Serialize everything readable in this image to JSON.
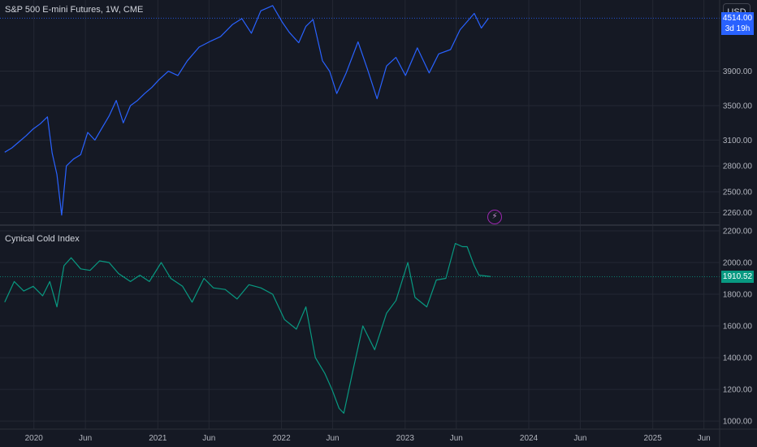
{
  "header": {
    "main_title": "S&P 500 E-mini Futures, 1W, CME",
    "currency_label": "USD",
    "indicator_title": "Cynical Cold Index"
  },
  "badges": {
    "price_value": "4514.00",
    "price_countdown": "3d 19h",
    "indicator_value": "1910.52"
  },
  "colors": {
    "background": "#151924",
    "grid": "#242833",
    "price_line": "#2962ff",
    "indicator_line": "#089981",
    "axis_text": "#b2b5be",
    "lightning_marker": "#9c27b0"
  },
  "icons": {
    "event_marker": "lightning-icon"
  },
  "chart_data": [
    {
      "type": "line",
      "title": "S&P 500 E-mini Futures, 1W, CME",
      "yticks": [
        "2260.00",
        "2500.00",
        "2800.00",
        "3100.00",
        "3500.00",
        "3900.00"
      ],
      "ylim": [
        2180,
        4650
      ],
      "last_value": 4514.0,
      "series": [
        {
          "name": "",
          "x": [
            "2019-10-07",
            "2019-10-28",
            "2019-11-18",
            "2019-12-09",
            "2019-12-30",
            "2020-01-20",
            "2020-02-10",
            "2020-02-24",
            "2020-03-09",
            "2020-03-23",
            "2020-04-06",
            "2020-04-27",
            "2020-05-18",
            "2020-06-08",
            "2020-06-29",
            "2020-07-20",
            "2020-08-10",
            "2020-08-31",
            "2020-09-21",
            "2020-10-12",
            "2020-11-02",
            "2020-11-23",
            "2020-12-14",
            "2021-01-04",
            "2021-02-01",
            "2021-03-01",
            "2021-03-29",
            "2021-05-03",
            "2021-06-07",
            "2021-07-05",
            "2021-08-09",
            "2021-09-06",
            "2021-10-04",
            "2021-11-01",
            "2021-12-06",
            "2022-01-03",
            "2022-01-24",
            "2022-02-21",
            "2022-03-14",
            "2022-04-04",
            "2022-05-02",
            "2022-05-23",
            "2022-06-13",
            "2022-07-11",
            "2022-08-15",
            "2022-09-12",
            "2022-10-10",
            "2022-11-07",
            "2022-12-05",
            "2023-01-02",
            "2023-02-06",
            "2023-03-13",
            "2023-04-10",
            "2023-05-15",
            "2023-06-12",
            "2023-07-24",
            "2023-08-14",
            "2023-09-04"
          ],
          "values": [
            2960,
            3010,
            3080,
            3150,
            3230,
            3290,
            3370,
            2950,
            2700,
            2230,
            2800,
            2880,
            2930,
            3190,
            3100,
            3240,
            3380,
            3560,
            3300,
            3500,
            3560,
            3640,
            3710,
            3800,
            3900,
            3850,
            4020,
            4180,
            4250,
            4300,
            4440,
            4510,
            4340,
            4600,
            4660,
            4470,
            4350,
            4230,
            4420,
            4500,
            4020,
            3900,
            3640,
            3880,
            4240,
            3920,
            3580,
            3960,
            4060,
            3850,
            4170,
            3880,
            4100,
            4150,
            4380,
            4570,
            4400,
            4514
          ]
        }
      ]
    },
    {
      "type": "line",
      "title": "Cynical Cold Index",
      "yticks": [
        "1000.00",
        "1200.00",
        "1400.00",
        "1600.00",
        "1800.00",
        "2000.00",
        "2200.00"
      ],
      "ylim": [
        970,
        2210
      ],
      "last_value": 1910.52,
      "series": [
        {
          "name": "",
          "x": [
            "2019-10-07",
            "2019-11-04",
            "2019-12-02",
            "2019-12-30",
            "2020-01-27",
            "2020-02-17",
            "2020-03-09",
            "2020-03-30",
            "2020-04-20",
            "2020-05-18",
            "2020-06-15",
            "2020-07-13",
            "2020-08-10",
            "2020-09-07",
            "2020-10-12",
            "2020-11-09",
            "2020-12-07",
            "2021-01-11",
            "2021-02-08",
            "2021-03-15",
            "2021-04-12",
            "2021-05-17",
            "2021-06-14",
            "2021-07-19",
            "2021-08-23",
            "2021-09-27",
            "2021-11-01",
            "2021-12-06",
            "2022-01-10",
            "2022-02-14",
            "2022-03-14",
            "2022-04-11",
            "2022-05-09",
            "2022-05-30",
            "2022-06-20",
            "2022-07-04",
            "2022-08-01",
            "2022-08-29",
            "2022-10-03",
            "2022-11-07",
            "2022-12-05",
            "2023-01-09",
            "2023-01-30",
            "2023-03-06",
            "2023-04-03",
            "2023-05-01",
            "2023-05-29",
            "2023-06-19",
            "2023-07-03",
            "2023-07-24",
            "2023-08-07",
            "2023-08-28",
            "2023-09-11"
          ],
          "values": [
            1750,
            1880,
            1820,
            1850,
            1790,
            1880,
            1720,
            1980,
            2030,
            1960,
            1950,
            2010,
            2000,
            1930,
            1880,
            1920,
            1880,
            2000,
            1900,
            1850,
            1750,
            1900,
            1840,
            1830,
            1770,
            1860,
            1840,
            1800,
            1640,
            1580,
            1720,
            1400,
            1300,
            1200,
            1080,
            1050,
            1330,
            1600,
            1450,
            1680,
            1760,
            2000,
            1780,
            1720,
            1890,
            1900,
            2120,
            2100,
            2100,
            1980,
            1920,
            1915,
            1910.52
          ]
        }
      ]
    }
  ],
  "x_axis": {
    "tick_labels": [
      "2020",
      "Jun",
      "2021",
      "Jun",
      "2022",
      "Jun",
      "2023",
      "Jun",
      "2024",
      "Jun",
      "2025",
      "Jun"
    ],
    "tick_dates": [
      "2020-01-01",
      "2020-06-01",
      "2021-01-01",
      "2021-06-01",
      "2022-01-01",
      "2022-06-01",
      "2023-01-01",
      "2023-06-01",
      "2024-01-01",
      "2024-06-01",
      "2025-01-01",
      "2025-06-01"
    ],
    "range": [
      "2019-09-23",
      "2025-07-15"
    ]
  }
}
